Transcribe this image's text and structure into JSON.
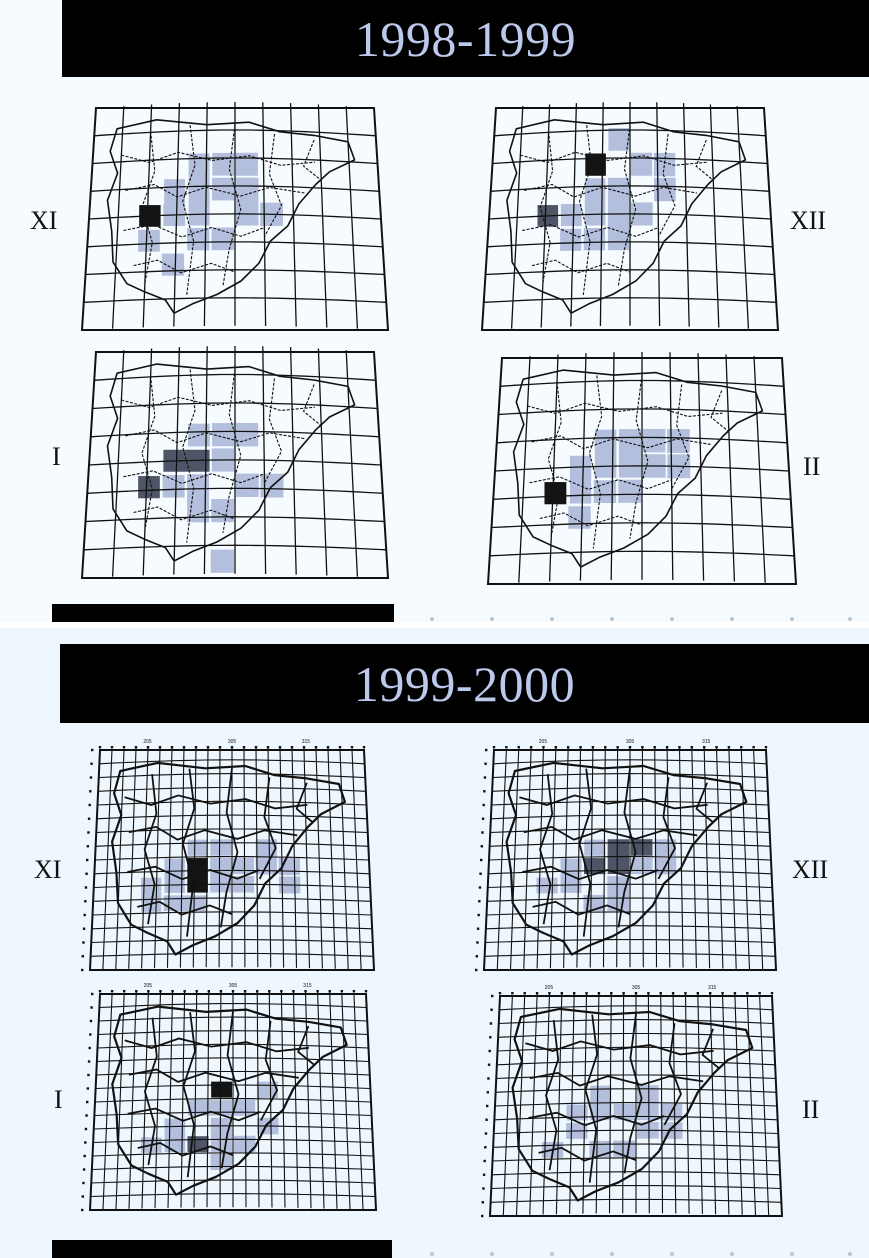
{
  "seasons": [
    {
      "title": "1998-1999",
      "maps": [
        {
          "month": "XI",
          "region": "Spain (Iberian Peninsula)",
          "grid": "coarse",
          "marks": "light+dark cells concentrated in southwest"
        },
        {
          "month": "XII",
          "region": "Spain (Iberian Peninsula)",
          "grid": "coarse",
          "marks": "light+dark cells concentrated in southwest"
        },
        {
          "month": "I",
          "region": "Spain (Iberian Peninsula)",
          "grid": "coarse",
          "marks": "light+dark cells concentrated in southwest"
        },
        {
          "month": "II",
          "region": "Spain (Iberian Peninsula)",
          "grid": "coarse",
          "marks": "light+dark cells concentrated in southwest"
        }
      ]
    },
    {
      "title": "1999-2000",
      "maps": [
        {
          "month": "XI",
          "grid": "fine",
          "top_labels": [
            "205",
            "305",
            "315"
          ],
          "marks": "light+dark cells concentrated in southwest"
        },
        {
          "month": "XII",
          "grid": "fine",
          "top_labels": [
            "205",
            "305",
            "315"
          ],
          "marks": "light+dark cells concentrated in southwest"
        },
        {
          "month": "I",
          "grid": "fine",
          "top_labels": [
            "205",
            "305",
            "315"
          ],
          "marks": "light+dark cells concentrated in southwest"
        },
        {
          "month": "II",
          "grid": "fine",
          "top_labels": [
            "205",
            "305",
            "315"
          ],
          "marks": "light cells concentrated in southwest"
        }
      ]
    }
  ],
  "colors": {
    "title_bar": "#000000",
    "title_text": "#bcc8ec",
    "light_cell": "#b3bfdc",
    "medium_cell": "#4e5566",
    "dark_cell": "#141414",
    "line": "#111111"
  }
}
